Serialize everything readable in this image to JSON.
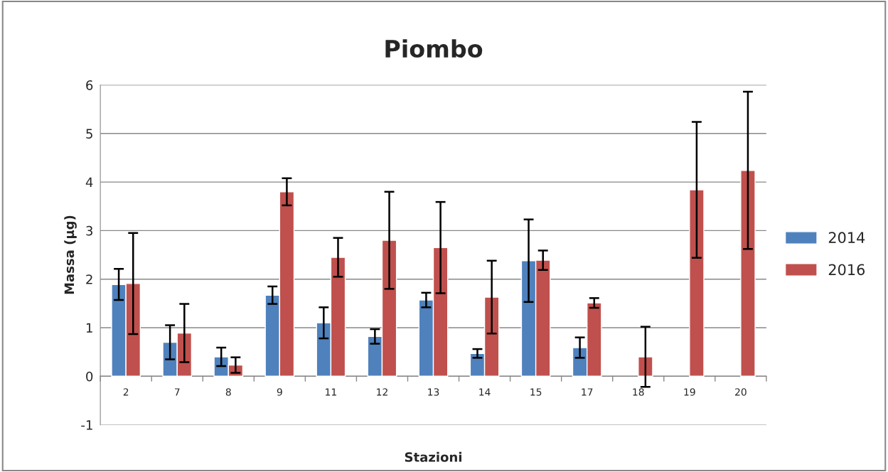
{
  "chart_data": {
    "type": "bar",
    "title": "Piombo",
    "xlabel": "Stazioni",
    "ylabel": "Massa (µg)",
    "categories": [
      "2",
      "7",
      "8",
      "9",
      "11",
      "12",
      "13",
      "14",
      "15",
      "17",
      "18",
      "19",
      "20"
    ],
    "series": [
      {
        "name": "2014",
        "color": "#4f81bd",
        "values": [
          1.89,
          0.7,
          0.4,
          1.67,
          1.1,
          0.82,
          1.57,
          0.47,
          2.38,
          0.59,
          null,
          null,
          null
        ],
        "errors": [
          0.32,
          0.35,
          0.19,
          0.18,
          0.32,
          0.15,
          0.15,
          0.09,
          0.85,
          0.21,
          null,
          null,
          null
        ]
      },
      {
        "name": "2016",
        "color": "#c0504d",
        "values": [
          1.91,
          0.89,
          0.23,
          3.8,
          2.45,
          2.8,
          2.65,
          1.63,
          2.39,
          1.51,
          0.4,
          3.84,
          4.24
        ],
        "errors": [
          1.04,
          0.6,
          0.16,
          0.28,
          0.4,
          1.0,
          0.94,
          0.75,
          0.2,
          0.1,
          0.62,
          1.4,
          1.62
        ]
      }
    ],
    "ylim": [
      -1,
      6
    ],
    "yticks": [
      -1,
      0,
      1,
      2,
      3,
      4,
      5,
      6
    ],
    "grid": "y",
    "legend": "right"
  }
}
